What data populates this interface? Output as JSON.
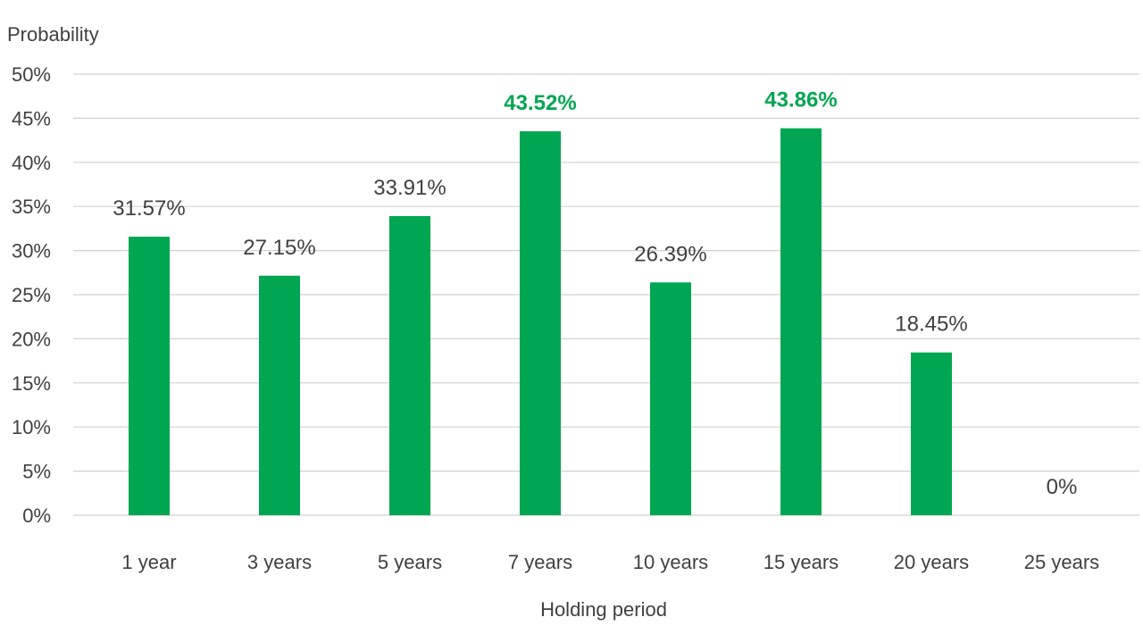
{
  "chart_data": {
    "type": "bar",
    "ylabel": "Probability",
    "xlabel": "Holding period",
    "categories": [
      "1 year",
      "3 years",
      "5 years",
      "7 years",
      "10 years",
      "15 years",
      "20 years",
      "25 years"
    ],
    "values": [
      31.57,
      27.15,
      33.91,
      43.52,
      26.39,
      43.86,
      18.45,
      0
    ],
    "value_labels": [
      "31.57%",
      "27.15%",
      "33.91%",
      "43.52%",
      "26.39%",
      "43.86%",
      "18.45%",
      "0%"
    ],
    "highlighted": [
      false,
      false,
      false,
      true,
      false,
      true,
      false,
      false
    ],
    "yticks": [
      "0%",
      "5%",
      "10%",
      "15%",
      "20%",
      "25%",
      "30%",
      "35%",
      "40%",
      "45%",
      "50%"
    ],
    "ylim": [
      0,
      50
    ],
    "grid": true,
    "legend": "none",
    "colors": {
      "bar": "#00a651",
      "highlight_label": "#00a651"
    }
  }
}
